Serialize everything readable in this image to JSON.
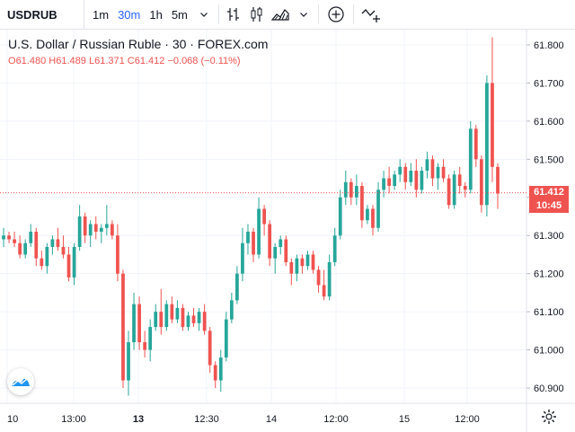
{
  "toolbar": {
    "symbol": "USDRUB",
    "intervals": [
      {
        "label": "1m",
        "active": false
      },
      {
        "label": "30m",
        "active": true
      },
      {
        "label": "1h",
        "active": false
      },
      {
        "label": "5m",
        "active": false
      }
    ],
    "icons": [
      "chevron-down-icon",
      "bars-style-icon",
      "candles-style-icon",
      "area-style-icon",
      "chevron-down-icon",
      "add-compare-icon",
      "indicators-icon"
    ]
  },
  "legend": {
    "title": "U.S. Dollar / Russian Ruble · 30 · FOREX.com",
    "open_label": "O",
    "open": "61.480",
    "high_label": "H",
    "high": "61.489",
    "low_label": "L",
    "low": "61.371",
    "close_label": "C",
    "close": "61.412",
    "change": "−0.068 (−0.11%)"
  },
  "price_axis": {
    "ticks": [
      "61.800",
      "61.700",
      "61.600",
      "61.500",
      "61.400",
      "61.300",
      "61.200",
      "61.100",
      "61.000",
      "60.900"
    ],
    "last_price": "61.412",
    "countdown": "10:45"
  },
  "time_axis": {
    "ticks": [
      "10",
      "13:00",
      "13",
      "12:30",
      "14",
      "12:00",
      "15",
      "12:00"
    ],
    "bold": [
      false,
      false,
      true,
      false,
      false,
      false,
      false,
      false
    ]
  },
  "colors": {
    "up": "#26a69a",
    "down": "#ef5350",
    "accent": "#2962ff",
    "grid": "#f0f3fa"
  },
  "chart_data": {
    "type": "candlestick",
    "symbol": "USDRUB",
    "interval": "30",
    "ylim": [
      60.86,
      61.84
    ],
    "last_price": 61.412,
    "candles": [
      [
        61.29,
        61.32,
        61.27,
        61.3
      ],
      [
        61.3,
        61.31,
        61.28,
        61.29
      ],
      [
        61.29,
        61.31,
        61.27,
        61.28
      ],
      [
        61.28,
        61.3,
        61.24,
        61.25
      ],
      [
        61.25,
        61.29,
        61.24,
        61.28
      ],
      [
        61.28,
        61.33,
        61.27,
        61.31
      ],
      [
        61.31,
        61.32,
        61.22,
        61.24
      ],
      [
        61.24,
        61.26,
        61.21,
        61.22
      ],
      [
        61.22,
        61.28,
        61.2,
        61.27
      ],
      [
        61.27,
        61.3,
        61.25,
        61.29
      ],
      [
        61.29,
        61.32,
        61.26,
        61.27
      ],
      [
        61.27,
        61.3,
        61.24,
        61.25
      ],
      [
        61.25,
        61.27,
        61.18,
        61.19
      ],
      [
        61.19,
        61.28,
        61.17,
        61.27
      ],
      [
        61.27,
        61.38,
        61.26,
        61.35
      ],
      [
        61.35,
        61.36,
        61.28,
        61.3
      ],
      [
        61.3,
        61.34,
        61.27,
        61.33
      ],
      [
        61.33,
        61.35,
        61.29,
        61.31
      ],
      [
        61.31,
        61.33,
        61.28,
        61.32
      ],
      [
        61.32,
        61.38,
        61.3,
        61.33
      ],
      [
        61.33,
        61.34,
        61.29,
        61.3
      ],
      [
        61.3,
        61.33,
        61.18,
        61.2
      ],
      [
        61.2,
        61.21,
        60.9,
        60.92
      ],
      [
        60.92,
        61.05,
        60.88,
        61.02
      ],
      [
        61.02,
        61.15,
        61.0,
        61.12
      ],
      [
        61.12,
        61.14,
        61.0,
        61.02
      ],
      [
        61.02,
        61.05,
        60.98,
        61.0
      ],
      [
        61.0,
        61.08,
        60.97,
        61.06
      ],
      [
        61.06,
        61.12,
        61.05,
        61.1
      ],
      [
        61.1,
        61.16,
        61.04,
        61.06
      ],
      [
        61.06,
        61.13,
        61.05,
        61.12
      ],
      [
        61.12,
        61.14,
        61.07,
        61.08
      ],
      [
        61.08,
        61.13,
        61.07,
        61.11
      ],
      [
        61.11,
        61.12,
        61.05,
        61.06
      ],
      [
        61.06,
        61.1,
        61.05,
        61.09
      ],
      [
        61.09,
        61.11,
        61.06,
        61.07
      ],
      [
        61.07,
        61.11,
        61.05,
        61.1
      ],
      [
        61.1,
        61.12,
        61.04,
        61.05
      ],
      [
        61.05,
        61.06,
        60.94,
        60.96
      ],
      [
        60.96,
        60.97,
        60.9,
        60.92
      ],
      [
        60.92,
        61.0,
        60.89,
        60.98
      ],
      [
        60.98,
        61.1,
        60.97,
        61.08
      ],
      [
        61.08,
        61.15,
        61.07,
        61.13
      ],
      [
        61.13,
        61.22,
        61.12,
        61.2
      ],
      [
        61.2,
        61.32,
        61.18,
        61.28
      ],
      [
        61.28,
        61.33,
        61.25,
        61.31
      ],
      [
        61.31,
        61.32,
        61.23,
        61.25
      ],
      [
        61.25,
        61.4,
        61.24,
        61.37
      ],
      [
        61.37,
        61.38,
        61.3,
        61.33
      ],
      [
        61.33,
        61.34,
        61.22,
        61.24
      ],
      [
        61.24,
        61.28,
        61.2,
        61.27
      ],
      [
        61.27,
        61.3,
        61.25,
        61.29
      ],
      [
        61.29,
        61.3,
        61.22,
        61.23
      ],
      [
        61.23,
        61.24,
        61.17,
        61.2
      ],
      [
        61.2,
        61.25,
        61.18,
        61.24
      ],
      [
        61.24,
        61.25,
        61.2,
        61.22
      ],
      [
        61.22,
        61.26,
        61.21,
        61.25
      ],
      [
        61.25,
        61.26,
        61.2,
        61.21
      ],
      [
        61.21,
        61.22,
        61.15,
        61.17
      ],
      [
        61.17,
        61.21,
        61.13,
        61.14
      ],
      [
        61.14,
        61.25,
        61.13,
        61.23
      ],
      [
        61.23,
        61.32,
        61.22,
        61.3
      ],
      [
        61.3,
        61.42,
        61.29,
        61.4
      ],
      [
        61.4,
        61.47,
        61.38,
        61.44
      ],
      [
        61.44,
        61.45,
        61.38,
        61.4
      ],
      [
        61.4,
        61.46,
        61.38,
        61.43
      ],
      [
        61.43,
        61.44,
        61.32,
        61.34
      ],
      [
        61.34,
        61.38,
        61.33,
        61.37
      ],
      [
        61.37,
        61.38,
        61.3,
        61.32
      ],
      [
        61.32,
        61.44,
        61.31,
        61.42
      ],
      [
        61.42,
        61.47,
        61.4,
        61.45
      ],
      [
        61.45,
        61.48,
        61.41,
        61.43
      ],
      [
        61.43,
        61.47,
        61.42,
        61.46
      ],
      [
        61.46,
        61.5,
        61.44,
        61.48
      ],
      [
        61.48,
        61.49,
        61.42,
        61.44
      ],
      [
        61.44,
        61.49,
        61.43,
        61.47
      ],
      [
        61.47,
        61.5,
        61.4,
        61.42
      ],
      [
        61.42,
        61.48,
        61.41,
        61.47
      ],
      [
        61.47,
        61.52,
        61.45,
        61.5
      ],
      [
        61.5,
        61.51,
        61.43,
        61.45
      ],
      [
        61.45,
        61.49,
        61.42,
        61.48
      ],
      [
        61.48,
        61.5,
        61.44,
        61.45
      ],
      [
        61.45,
        61.46,
        61.37,
        61.38
      ],
      [
        61.38,
        61.47,
        61.37,
        61.46
      ],
      [
        61.46,
        61.48,
        61.41,
        61.43
      ],
      [
        61.43,
        61.44,
        61.4,
        61.42
      ],
      [
        61.42,
        61.6,
        61.41,
        61.58
      ],
      [
        61.58,
        61.59,
        61.48,
        61.5
      ],
      [
        61.5,
        61.51,
        61.36,
        61.38
      ],
      [
        61.38,
        61.72,
        61.35,
        61.7
      ],
      [
        61.7,
        61.82,
        61.44,
        61.48
      ],
      [
        61.48,
        61.49,
        61.37,
        61.41
      ]
    ]
  }
}
